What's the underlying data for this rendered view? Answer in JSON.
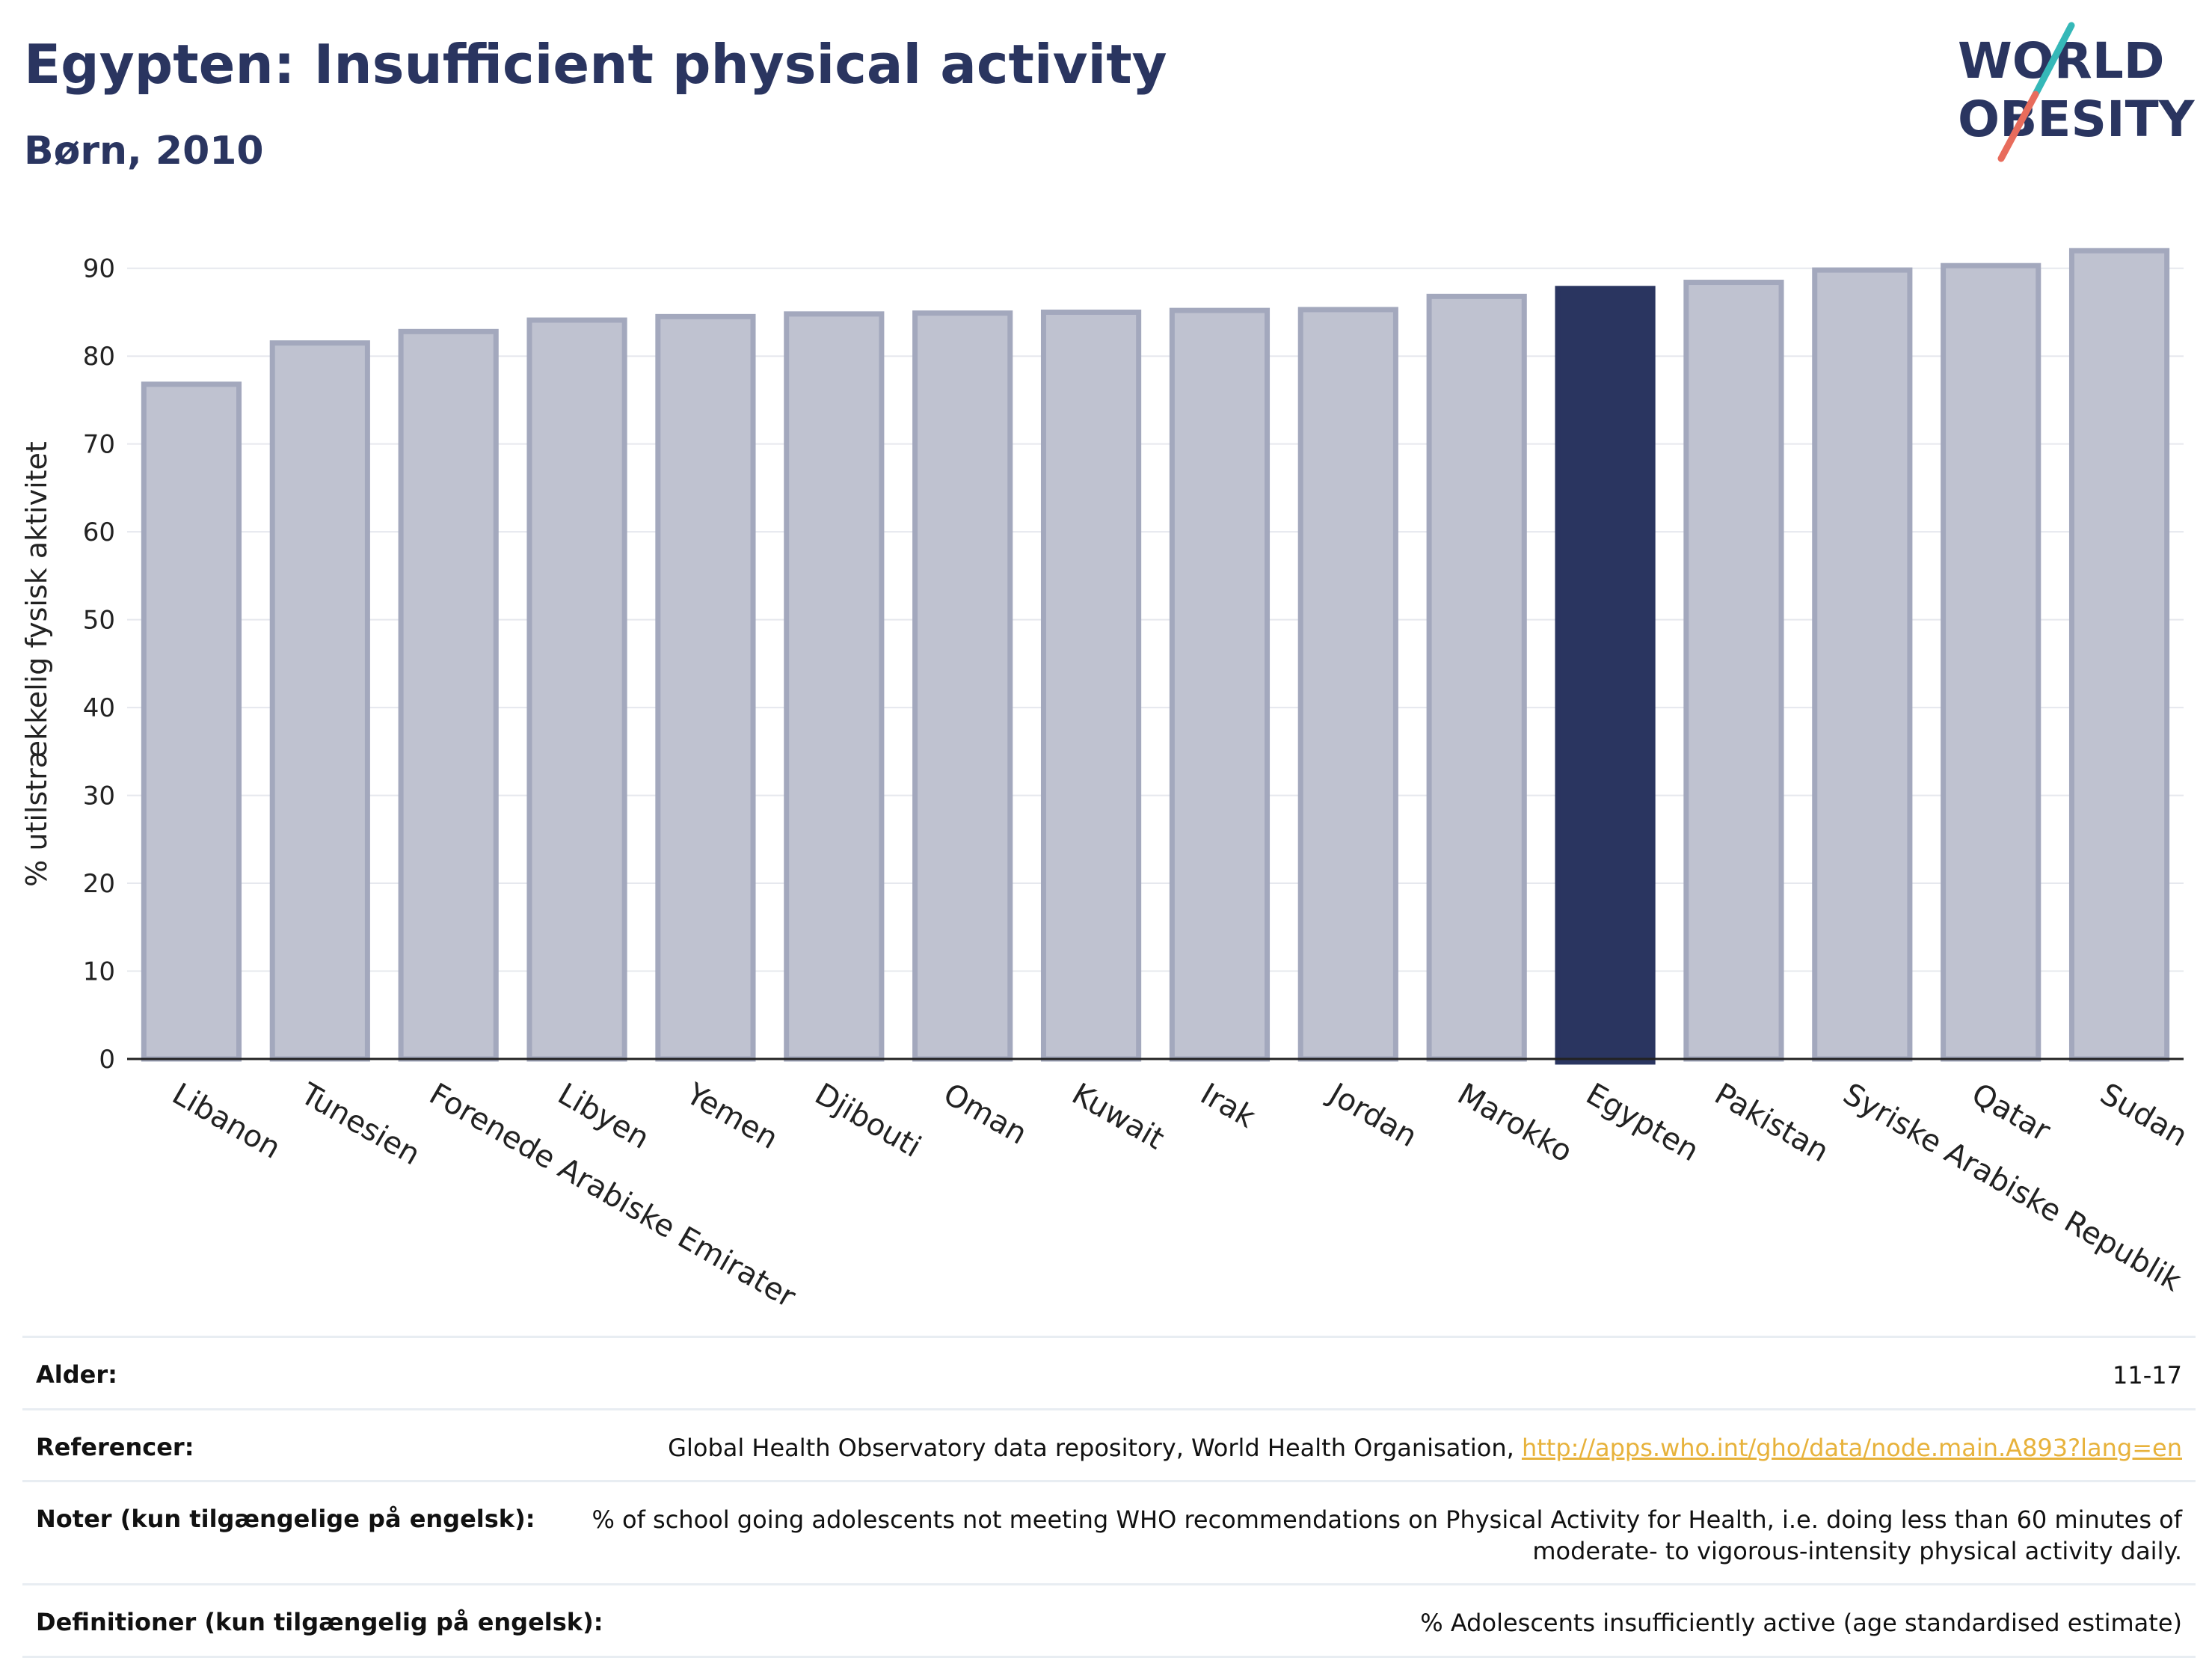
{
  "header": {
    "title": "Egypten: Insufficient physical activity",
    "subtitle": "Børn, 2010"
  },
  "logo": {
    "line1": "WORLD",
    "line2": "OBESITY",
    "colors": {
      "text": "#2a3560",
      "slash_top": "#35b8b8",
      "slash_bottom": "#e86c5c"
    }
  },
  "chart_data": {
    "type": "bar",
    "categories": [
      "Libanon",
      "Tunesien",
      "Forenede Arabiske Emirater",
      "Libyen",
      "Yemen",
      "Djibouti",
      "Oman",
      "Kuwait",
      "Irak",
      "Jordan",
      "Marokko",
      "Egypten",
      "Pakistan",
      "Syriske Arabiske Republik",
      "Qatar",
      "Sudan"
    ],
    "values": [
      76.8,
      81.5,
      82.8,
      84.1,
      84.5,
      84.8,
      84.9,
      85.0,
      85.2,
      85.3,
      86.8,
      87.7,
      88.4,
      89.8,
      90.3,
      92.0
    ],
    "highlight": "Egypten",
    "ylabel": "% utilstrækkelig fysisk aktivitet",
    "yticks": [
      0,
      10,
      20,
      30,
      40,
      50,
      60,
      70,
      80,
      90
    ],
    "ylim": [
      0,
      95
    ],
    "grid": true,
    "colors": {
      "bar": "#bfc2d0",
      "bar_edge": "#a3a8bd",
      "highlight": "#2a3560"
    }
  },
  "meta": {
    "rows": [
      {
        "label": "Alder:",
        "value": "11-17"
      },
      {
        "label": "Referencer:",
        "value": "Global Health Observatory data repository, World Health Organisation, ",
        "link": "http://apps.who.int/gho/data/node.main.A893?lang=en"
      },
      {
        "label": "Noter (kun tilgængelige på engelsk):",
        "value": "% of school going adolescents not meeting WHO recommendations on Physical Activity for Health, i.e. doing less than 60 minutes of moderate- to vigorous-intensity physical activity daily."
      },
      {
        "label": "Definitioner (kun tilgængelig på engelsk):",
        "value": "% Adolescents insufficiently active (age standardised estimate)"
      }
    ]
  }
}
